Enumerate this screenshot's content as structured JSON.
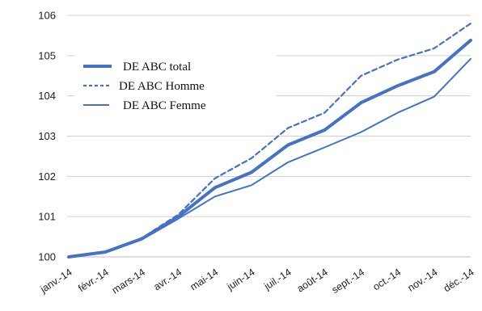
{
  "chart_data": {
    "type": "line",
    "title": "",
    "xlabel": "",
    "ylabel": "",
    "categories": [
      "janv.-14",
      "févr.-14",
      "mars-14",
      "avr.-14",
      "mai-14",
      "juin-14",
      "juil.-14",
      "août-14",
      "sept.-14",
      "oct.-14",
      "nov.-14",
      "déc.-14"
    ],
    "ylim": [
      100,
      106
    ],
    "yticks": [
      100,
      101,
      102,
      103,
      104,
      105,
      106
    ],
    "grid": "horizontal",
    "legend_position": "upper-left",
    "series": [
      {
        "name": "DE ABC total",
        "style": "thick-solid",
        "color": "#4472C4",
        "values": [
          100.0,
          100.12,
          100.45,
          101.0,
          101.72,
          102.1,
          102.78,
          103.15,
          103.83,
          104.25,
          104.6,
          105.38
        ]
      },
      {
        "name": "DE ABC Homme",
        "style": "dashed",
        "color": "#4472C4",
        "values": [
          100.0,
          100.12,
          100.47,
          101.05,
          101.95,
          102.45,
          103.2,
          103.58,
          104.5,
          104.9,
          105.18,
          105.8
        ]
      },
      {
        "name": "DE ABC Femme",
        "style": "thin-solid",
        "color": "#4472C4",
        "values": [
          100.0,
          100.12,
          100.43,
          100.95,
          101.5,
          101.78,
          102.35,
          102.72,
          103.1,
          103.58,
          103.98,
          104.92
        ]
      }
    ]
  }
}
